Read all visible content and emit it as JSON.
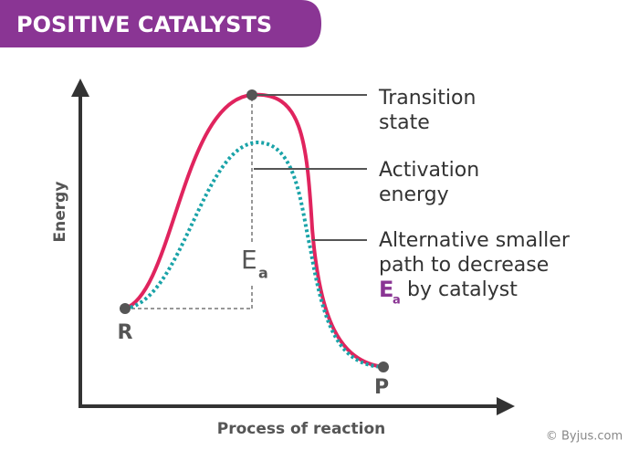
{
  "header": {
    "title": "POSITIVE CATALYSTS"
  },
  "axes": {
    "y_label": "Energy",
    "x_label": "Process of reaction"
  },
  "points": {
    "reactant": "R",
    "product": "P"
  },
  "ea_label": {
    "symbol": "E",
    "subscript": "a"
  },
  "annotations": [
    {
      "lines": [
        "Transition",
        "state"
      ]
    },
    {
      "lines": [
        "Activation",
        "energy"
      ]
    },
    {
      "lines": [
        "Alternative smaller",
        "path to decrease"
      ],
      "tail": {
        "symbol": "E",
        "subscript": "a",
        "text": "by catalyst"
      }
    }
  ],
  "credit": "© Byjus.com"
}
